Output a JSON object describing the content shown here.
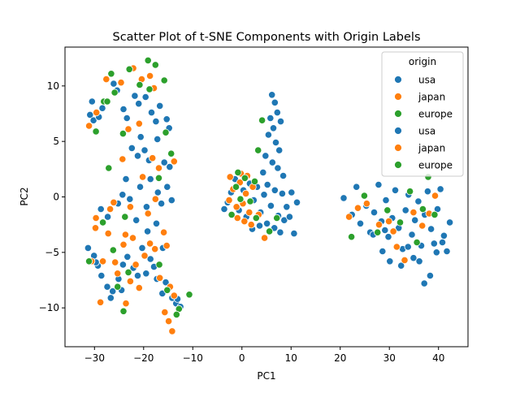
{
  "chart_data": {
    "type": "scatter",
    "title": "Scatter Plot of t-SNE Components with Origin Labels",
    "xlabel": "PC1",
    "ylabel": "PC2",
    "xlim": [
      -36,
      46
    ],
    "ylim": [
      -13.5,
      13.5
    ],
    "xticks": [
      -30,
      -20,
      -10,
      0,
      10,
      20,
      30,
      40
    ],
    "yticks": [
      -10,
      -5,
      0,
      5,
      10
    ],
    "grid": false,
    "legend": {
      "title": "origin",
      "placement": "top-right",
      "entries": [
        {
          "label": "usa",
          "color": "#1f77b4"
        },
        {
          "label": "japan",
          "color": "#ff7f0e"
        },
        {
          "label": "europe",
          "color": "#2ca02c"
        },
        {
          "label": "usa",
          "color": "#1f77b4"
        },
        {
          "label": "japan",
          "color": "#ff7f0e"
        },
        {
          "label": "europe",
          "color": "#2ca02c"
        }
      ]
    },
    "series": [
      {
        "name": "usa",
        "color": "#1f77b4",
        "points": [
          [
            -30.5,
            8.6
          ],
          [
            -30.9,
            7.4
          ],
          [
            -30.2,
            6.9
          ],
          [
            -28.4,
            8.0
          ],
          [
            -29.1,
            7.2
          ],
          [
            -26.1,
            10.2
          ],
          [
            -25.4,
            9.6
          ],
          [
            -24.1,
            7.9
          ],
          [
            -23.4,
            7.1
          ],
          [
            -21.8,
            9.1
          ],
          [
            -21.0,
            8.4
          ],
          [
            -19.6,
            9.0
          ],
          [
            -18.4,
            7.6
          ],
          [
            -17.5,
            6.8
          ],
          [
            -16.7,
            8.2
          ],
          [
            -15.3,
            7.0
          ],
          [
            -14.8,
            6.2
          ],
          [
            -22.4,
            4.4
          ],
          [
            -21.2,
            3.7
          ],
          [
            -19.8,
            4.2
          ],
          [
            -20.6,
            5.4
          ],
          [
            -18.9,
            3.3
          ],
          [
            -17.2,
            5.2
          ],
          [
            -15.8,
            3.1
          ],
          [
            -14.7,
            2.7
          ],
          [
            -23.6,
            1.6
          ],
          [
            -24.3,
            0.2
          ],
          [
            -25.2,
            -0.6
          ],
          [
            -22.8,
            -0.2
          ],
          [
            -20.7,
            0.9
          ],
          [
            -19.4,
            -0.9
          ],
          [
            -18.6,
            1.6
          ],
          [
            -17.1,
            0.4
          ],
          [
            -16.4,
            -0.6
          ],
          [
            -15.2,
            0.9
          ],
          [
            -14.3,
            -0.3
          ],
          [
            -28.7,
            -1.1
          ],
          [
            -27.3,
            -1.8
          ],
          [
            -21.5,
            -2.1
          ],
          [
            -19.2,
            -3.1
          ],
          [
            -17.4,
            -2.4
          ],
          [
            -16.1,
            -4.6
          ],
          [
            -31.3,
            -4.6
          ],
          [
            -30.1,
            -5.3
          ],
          [
            -29.3,
            -6.2
          ],
          [
            -28.6,
            -7.1
          ],
          [
            -27.4,
            -8.1
          ],
          [
            -26.3,
            -8.5
          ],
          [
            -25.1,
            -7.4
          ],
          [
            -24.2,
            -6.1
          ],
          [
            -23.3,
            -5.4
          ],
          [
            -22.1,
            -6.4
          ],
          [
            -21.2,
            -7.1
          ],
          [
            -20.3,
            -4.6
          ],
          [
            -19.5,
            -6.9
          ],
          [
            -18.6,
            -5.6
          ],
          [
            -17.3,
            -7.4
          ],
          [
            -16.2,
            -8.7
          ],
          [
            -15.5,
            -7.7
          ],
          [
            -14.2,
            -9.1
          ],
          [
            -13.4,
            -9.6
          ],
          [
            -12.5,
            -9.9
          ],
          [
            -26.7,
            -9.1
          ],
          [
            -24.5,
            -8.4
          ],
          [
            -29.7,
            -5.9
          ],
          [
            -17.9,
            -6.3
          ],
          [
            -13.1,
            -9.2
          ],
          [
            -3.6,
            -1.1
          ],
          [
            -2.9,
            -0.5
          ],
          [
            -2.2,
            0.4
          ],
          [
            -1.4,
            1.6
          ],
          [
            -0.6,
            -1.2
          ],
          [
            0.3,
            0.6
          ],
          [
            0.9,
            -1.8
          ],
          [
            1.6,
            1.2
          ],
          [
            2.4,
            -0.3
          ],
          [
            3.1,
            0.9
          ],
          [
            3.8,
            -1.4
          ],
          [
            4.5,
            0.2
          ],
          [
            5.2,
            1.1
          ],
          [
            5.9,
            -0.8
          ],
          [
            6.7,
            0.6
          ],
          [
            7.4,
            -1.7
          ],
          [
            8.2,
            0.3
          ],
          [
            9.1,
            -0.9
          ],
          [
            10.1,
            0.4
          ],
          [
            11.2,
            -0.5
          ],
          [
            6.1,
            9.2
          ],
          [
            6.7,
            8.5
          ],
          [
            7.2,
            7.6
          ],
          [
            5.8,
            7.1
          ],
          [
            6.4,
            6.2
          ],
          [
            7.9,
            6.8
          ],
          [
            5.4,
            5.6
          ],
          [
            6.9,
            4.9
          ],
          [
            7.6,
            4.2
          ],
          [
            4.8,
            3.7
          ],
          [
            6.2,
            3.1
          ],
          [
            7.3,
            2.6
          ],
          [
            8.4,
            1.9
          ],
          [
            4.3,
            2.2
          ],
          [
            5.1,
            -2.4
          ],
          [
            6.6,
            -2.8
          ],
          [
            7.8,
            -3.2
          ],
          [
            8.6,
            -2.1
          ],
          [
            9.7,
            -1.8
          ],
          [
            3.6,
            -2.6
          ],
          [
            10.6,
            -3.3
          ],
          [
            2.1,
            -2.9
          ],
          [
            20.7,
            -0.1
          ],
          [
            22.4,
            -1.6
          ],
          [
            23.3,
            0.9
          ],
          [
            24.1,
            -2.4
          ],
          [
            25.3,
            -0.8
          ],
          [
            26.1,
            -3.2
          ],
          [
            26.9,
            -1.4
          ],
          [
            27.8,
            1.1
          ],
          [
            28.4,
            -2.2
          ],
          [
            29.3,
            -0.3
          ],
          [
            29.8,
            -3.6
          ],
          [
            30.6,
            -1.9
          ],
          [
            31.2,
            0.6
          ],
          [
            31.9,
            -2.8
          ],
          [
            32.7,
            -4.7
          ],
          [
            33.3,
            -1.2
          ],
          [
            33.9,
            0.2
          ],
          [
            34.6,
            -3.4
          ],
          [
            35.2,
            -2.1
          ],
          [
            35.9,
            -0.4
          ],
          [
            36.5,
            -4.4
          ],
          [
            37.2,
            -1.6
          ],
          [
            37.8,
            0.5
          ],
          [
            38.5,
            -2.9
          ],
          [
            39.1,
            -4.2
          ],
          [
            39.8,
            -1.1
          ],
          [
            40.4,
            0.7
          ],
          [
            41.1,
            -3.5
          ],
          [
            41.7,
            -4.9
          ],
          [
            42.3,
            -2.3
          ],
          [
            28.6,
            -4.9
          ],
          [
            30.1,
            -5.8
          ],
          [
            32.4,
            -6.2
          ],
          [
            34.9,
            -5.5
          ],
          [
            37.1,
            -7.8
          ],
          [
            38.3,
            -7.1
          ],
          [
            36.1,
            -5.8
          ],
          [
            39.6,
            -5.0
          ],
          [
            40.8,
            -4.1
          ],
          [
            33.8,
            -4.5
          ],
          [
            29.1,
            -3.0
          ],
          [
            26.7,
            -3.4
          ]
        ]
      },
      {
        "name": "japan",
        "color": "#ff7f0e",
        "points": [
          [
            -31.1,
            6.4
          ],
          [
            -29.6,
            7.6
          ],
          [
            -27.6,
            10.6
          ],
          [
            -24.6,
            10.3
          ],
          [
            -22.1,
            11.6
          ],
          [
            -20.4,
            10.6
          ],
          [
            -18.7,
            10.9
          ],
          [
            -17.9,
            9.8
          ],
          [
            -20.9,
            6.6
          ],
          [
            -23.1,
            6.1
          ],
          [
            -18.2,
            3.5
          ],
          [
            -24.3,
            3.4
          ],
          [
            -13.8,
            3.2
          ],
          [
            -16.9,
            2.6
          ],
          [
            -20.2,
            1.8
          ],
          [
            -17.6,
            -0.2
          ],
          [
            -26.1,
            -0.5
          ],
          [
            -22.7,
            -0.9
          ],
          [
            -19.1,
            -1.5
          ],
          [
            -15.9,
            -3.2
          ],
          [
            -29.7,
            -1.9
          ],
          [
            -27.2,
            -3.3
          ],
          [
            -23.7,
            -3.4
          ],
          [
            -22.2,
            -3.7
          ],
          [
            -18.7,
            -4.2
          ],
          [
            -30.6,
            -5.8
          ],
          [
            -28.3,
            -5.8
          ],
          [
            -25.8,
            -5.9
          ],
          [
            -24.1,
            -4.3
          ],
          [
            -21.6,
            -6.1
          ],
          [
            -19.8,
            -5.3
          ],
          [
            -17.7,
            -4.7
          ],
          [
            -15.3,
            -4.4
          ],
          [
            -25.3,
            -6.9
          ],
          [
            -22.7,
            -7.6
          ],
          [
            -20.9,
            -8.2
          ],
          [
            -16.7,
            -7.3
          ],
          [
            -14.6,
            -8.1
          ],
          [
            -13.8,
            -8.9
          ],
          [
            -15.7,
            -10.4
          ],
          [
            -14.9,
            -11.2
          ],
          [
            -14.2,
            -12.1
          ],
          [
            -28.8,
            -9.5
          ],
          [
            -23.6,
            -9.6
          ],
          [
            -29.8,
            -2.8
          ],
          [
            -26.8,
            -1.1
          ],
          [
            -2.6,
            -0.3
          ],
          [
            -1.8,
            0.7
          ],
          [
            -1.1,
            -0.9
          ],
          [
            -0.4,
            1.3
          ],
          [
            0.2,
            -0.6
          ],
          [
            0.8,
            0.3
          ],
          [
            1.5,
            -1.4
          ],
          [
            2.2,
            0.9
          ],
          [
            -0.9,
            -1.9
          ],
          [
            0.5,
            -2.2
          ],
          [
            1.9,
            -2.5
          ],
          [
            3.4,
            -1.6
          ],
          [
            4.6,
            -3.7
          ],
          [
            -2.4,
            1.8
          ],
          [
            -0.2,
            2.1
          ],
          [
            1.1,
            1.9
          ],
          [
            21.8,
            -1.8
          ],
          [
            23.6,
            -1.0
          ],
          [
            25.4,
            -0.6
          ],
          [
            27.9,
            -2.5
          ],
          [
            29.9,
            -2.2
          ],
          [
            30.8,
            -3.1
          ],
          [
            31.5,
            -4.5
          ],
          [
            33.1,
            -5.7
          ],
          [
            34.9,
            -1.4
          ],
          [
            36.7,
            -2.6
          ],
          [
            38.1,
            -1.5
          ],
          [
            39.3,
            0.1
          ]
        ]
      },
      {
        "name": "europe",
        "color": "#2ca02c",
        "points": [
          [
            -28.1,
            8.6
          ],
          [
            -26.6,
            11.1
          ],
          [
            -25.9,
            9.4
          ],
          [
            -22.9,
            11.5
          ],
          [
            -20.8,
            10.1
          ],
          [
            -19.1,
            12.3
          ],
          [
            -17.6,
            11.9
          ],
          [
            -15.8,
            10.5
          ],
          [
            -18.8,
            9.7
          ],
          [
            -27.4,
            8.6
          ],
          [
            -24.2,
            5.7
          ],
          [
            -15.5,
            5.8
          ],
          [
            -14.4,
            3.9
          ],
          [
            -27.1,
            2.6
          ],
          [
            -23.8,
            -1.8
          ],
          [
            -28.3,
            -2.3
          ],
          [
            -26.2,
            -4.8
          ],
          [
            -23.1,
            -6.8
          ],
          [
            -16.8,
            -6.1
          ],
          [
            -25.3,
            -8.1
          ],
          [
            -24.1,
            -10.3
          ],
          [
            -15.2,
            -8.4
          ],
          [
            -12.8,
            -10.1
          ],
          [
            -10.7,
            -8.8
          ],
          [
            -13.3,
            -10.6
          ],
          [
            -31.1,
            -5.8
          ],
          [
            -29.7,
            5.9
          ],
          [
            -16.9,
            1.7
          ],
          [
            -1.2,
            0.9
          ],
          [
            0.6,
            1.7
          ],
          [
            1.7,
            -0.4
          ],
          [
            2.6,
            1.4
          ],
          [
            -0.3,
            -0.2
          ],
          [
            -2.1,
            -1.6
          ],
          [
            3.3,
            4.2
          ],
          [
            4.1,
            6.9
          ],
          [
            5.6,
            -3.1
          ],
          [
            7.1,
            -1.9
          ],
          [
            -0.8,
            2.2
          ],
          [
            2.9,
            -1.9
          ],
          [
            22.3,
            -3.6
          ],
          [
            24.9,
            0.1
          ],
          [
            27.6,
            -3.2
          ],
          [
            29.6,
            -1.2
          ],
          [
            32.2,
            -2.3
          ],
          [
            34.2,
            0.5
          ],
          [
            36.8,
            -1.1
          ],
          [
            37.9,
            1.8
          ],
          [
            35.6,
            -4.1
          ],
          [
            39.2,
            -1.6
          ]
        ]
      }
    ]
  }
}
